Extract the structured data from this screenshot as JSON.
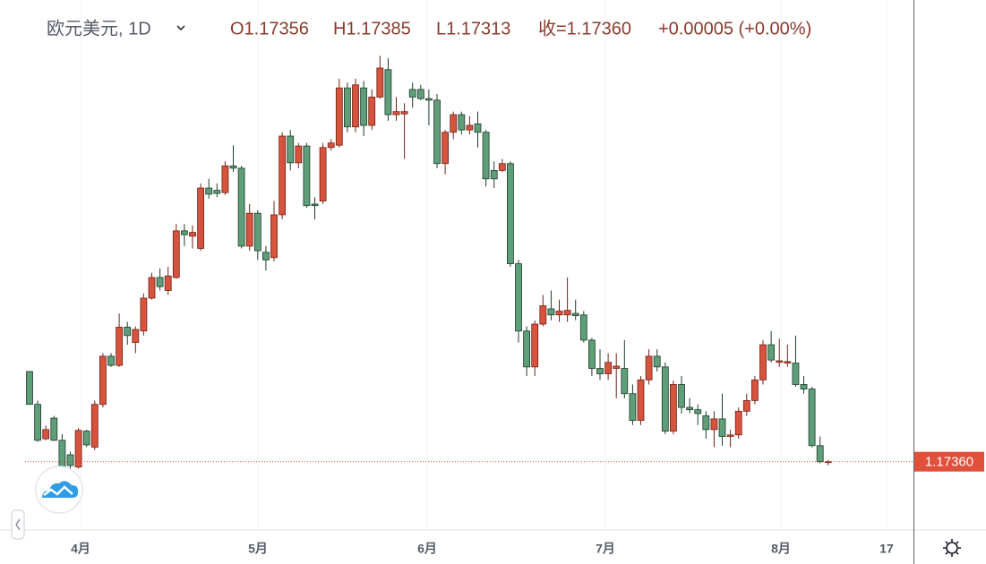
{
  "chart_data": {
    "type": "candlestick",
    "header": {
      "symbol": "欧元美元, 1D",
      "open": "O1.17356",
      "high": "H1.17385",
      "low": "L1.17313",
      "close": "收=1.17360",
      "change": "+0.00005 (+0.00%)"
    },
    "up_color": "#d6533d",
    "down_color": "#5e9e79",
    "series": {
      "open": [
        1.1854,
        1.1811,
        1.1766,
        1.1793,
        1.1764,
        1.1745,
        1.1729,
        1.1776,
        1.1755,
        1.1811,
        1.1874,
        1.1862,
        1.1912,
        1.1892,
        1.1907,
        1.195,
        1.1977,
        1.196,
        1.1977,
        1.2038,
        1.2031,
        1.2015,
        1.2094,
        1.2091,
        1.2088,
        1.2123,
        1.212,
        1.2018,
        1.2061,
        1.201,
        1.2003,
        1.2059,
        1.2162,
        1.2127,
        1.2149,
        1.2073,
        1.2077,
        1.2147,
        1.215,
        1.2225,
        1.2174,
        1.2225,
        1.2176,
        1.2213,
        1.2249,
        1.219,
        1.2191,
        1.2223,
        1.2223,
        1.2211,
        1.2209,
        1.2126,
        1.2167,
        1.219,
        1.217,
        1.2178,
        1.2167,
        1.2117,
        1.2117,
        1.2126,
        1.1995,
        1.1907,
        1.186,
        1.1916,
        1.1936,
        1.1928,
        1.1928,
        1.193,
        1.1928,
        1.1895,
        1.1858,
        1.1851,
        1.1858,
        1.1858,
        1.1825,
        1.179,
        1.1843,
        1.1874,
        1.186,
        1.1776,
        1.1837,
        1.1807,
        1.1804,
        1.1796,
        1.1778,
        1.1792,
        1.1769,
        1.1771,
        1.1802,
        1.1816,
        1.1843,
        1.1889,
        1.1866,
        1.1865,
        1.1865,
        1.1837,
        1.1831,
        1.1757,
        1.17356
      ],
      "high": [
        1.1854,
        1.1816,
        1.1783,
        1.1796,
        1.1772,
        1.1749,
        1.178,
        1.1778,
        1.1816,
        1.1878,
        1.1878,
        1.193,
        1.1919,
        1.1913,
        1.1956,
        1.1983,
        1.1989,
        1.1991,
        1.2047,
        1.2047,
        1.2045,
        1.21,
        1.2106,
        1.21,
        1.2129,
        1.215,
        1.2123,
        1.2073,
        1.2065,
        1.2018,
        1.2077,
        1.2167,
        1.217,
        1.2153,
        1.2153,
        1.2082,
        1.2153,
        1.2158,
        1.2237,
        1.2232,
        1.2237,
        1.2234,
        1.2223,
        1.2267,
        1.2264,
        1.2213,
        1.2205,
        1.2232,
        1.2229,
        1.2223,
        1.2217,
        1.217,
        1.2194,
        1.2194,
        1.2188,
        1.2194,
        1.217,
        1.2129,
        1.2132,
        1.2129,
        1.2,
        1.1913,
        1.1921,
        1.1954,
        1.196,
        1.1948,
        1.1977,
        1.1948,
        1.1933,
        1.1898,
        1.1883,
        1.1878,
        1.1878,
        1.1895,
        1.1837,
        1.1848,
        1.1883,
        1.1883,
        1.1866,
        1.1842,
        1.1848,
        1.1819,
        1.1811,
        1.1802,
        1.1802,
        1.1825,
        1.1778,
        1.1807,
        1.1825,
        1.1848,
        1.1895,
        1.1907,
        1.1897,
        1.1889,
        1.1901,
        1.1848,
        1.1834,
        1.1769,
        1.17385
      ],
      "low": [
        1.1811,
        1.1762,
        1.1764,
        1.1763,
        1.1714,
        1.1727,
        1.1727,
        1.1755,
        1.1751,
        1.1807,
        1.186,
        1.186,
        1.1889,
        1.1878,
        1.1901,
        1.1948,
        1.196,
        1.1954,
        1.1975,
        1.2018,
        1.2015,
        1.2012,
        1.208,
        1.2082,
        1.2085,
        1.2115,
        1.2015,
        1.2012,
        1.2,
        1.1986,
        1.1998,
        1.2053,
        1.2117,
        1.212,
        1.2068,
        1.2053,
        1.2073,
        1.2143,
        1.2147,
        1.2167,
        1.2167,
        1.2162,
        1.217,
        1.2211,
        1.2182,
        1.2182,
        1.2132,
        1.2199,
        1.2209,
        1.2176,
        1.212,
        1.2112,
        1.2158,
        1.2164,
        1.2164,
        1.2147,
        1.2096,
        1.2094,
        1.2115,
        1.1991,
        1.1892,
        1.1848,
        1.1848,
        1.1913,
        1.1921,
        1.1919,
        1.1919,
        1.1921,
        1.1892,
        1.1848,
        1.1843,
        1.1843,
        1.1819,
        1.1819,
        1.1784,
        1.1784,
        1.1837,
        1.1854,
        1.1772,
        1.1772,
        1.1799,
        1.1799,
        1.1784,
        1.1766,
        1.1755,
        1.1757,
        1.1755,
        1.1766,
        1.1796,
        1.1811,
        1.1837,
        1.1866,
        1.186,
        1.186,
        1.1834,
        1.1825,
        1.1755,
        1.1734,
        1.17313
      ],
      "close": [
        1.1811,
        1.1764,
        1.1778,
        1.1764,
        1.1729,
        1.1731,
        1.1777,
        1.1758,
        1.1811,
        1.1874,
        1.1862,
        1.1912,
        1.1901,
        1.1909,
        1.195,
        1.1977,
        1.1965,
        1.1979,
        1.2038,
        1.2033,
        1.2036,
        1.2094,
        1.2086,
        1.2087,
        1.2123,
        1.212,
        1.2018,
        1.2061,
        1.2012,
        1.2,
        1.2059,
        1.2162,
        1.2127,
        1.2149,
        1.2071,
        1.2071,
        1.2147,
        1.2153,
        1.2225,
        1.2174,
        1.2229,
        1.2176,
        1.2213,
        1.2251,
        1.219,
        1.2194,
        1.2194,
        1.2213,
        1.2211,
        1.2209,
        1.2126,
        1.2167,
        1.219,
        1.217,
        1.2176,
        1.2167,
        1.2106,
        1.2106,
        1.2126,
        1.1995,
        1.1907,
        1.186,
        1.1916,
        1.194,
        1.1928,
        1.1933,
        1.1934,
        1.1927,
        1.1895,
        1.1858,
        1.1851,
        1.1866,
        1.1861,
        1.1825,
        1.179,
        1.1843,
        1.1874,
        1.186,
        1.1776,
        1.1837,
        1.1807,
        1.1804,
        1.1799,
        1.1778,
        1.1792,
        1.1769,
        1.1771,
        1.1802,
        1.1816,
        1.1843,
        1.1889,
        1.1869,
        1.1868,
        1.1867,
        1.1837,
        1.1831,
        1.1757,
        1.1736,
        1.1736
      ]
    },
    "last_price": {
      "value": 1.1736,
      "label": "1.17360"
    },
    "ylim": [
      1.1649,
      1.234
    ],
    "xlim": [
      -0.55,
      108.46
    ],
    "xticks": [
      {
        "value": 6.26,
        "label": "4月"
      },
      {
        "value": 28.02,
        "label": "5月"
      },
      {
        "value": 48.79,
        "label": "6月"
      },
      {
        "value": 70.66,
        "label": "7月"
      },
      {
        "value": 92.2,
        "label": "8月"
      },
      {
        "value": 105.16,
        "label": "17"
      }
    ],
    "grid": true
  }
}
